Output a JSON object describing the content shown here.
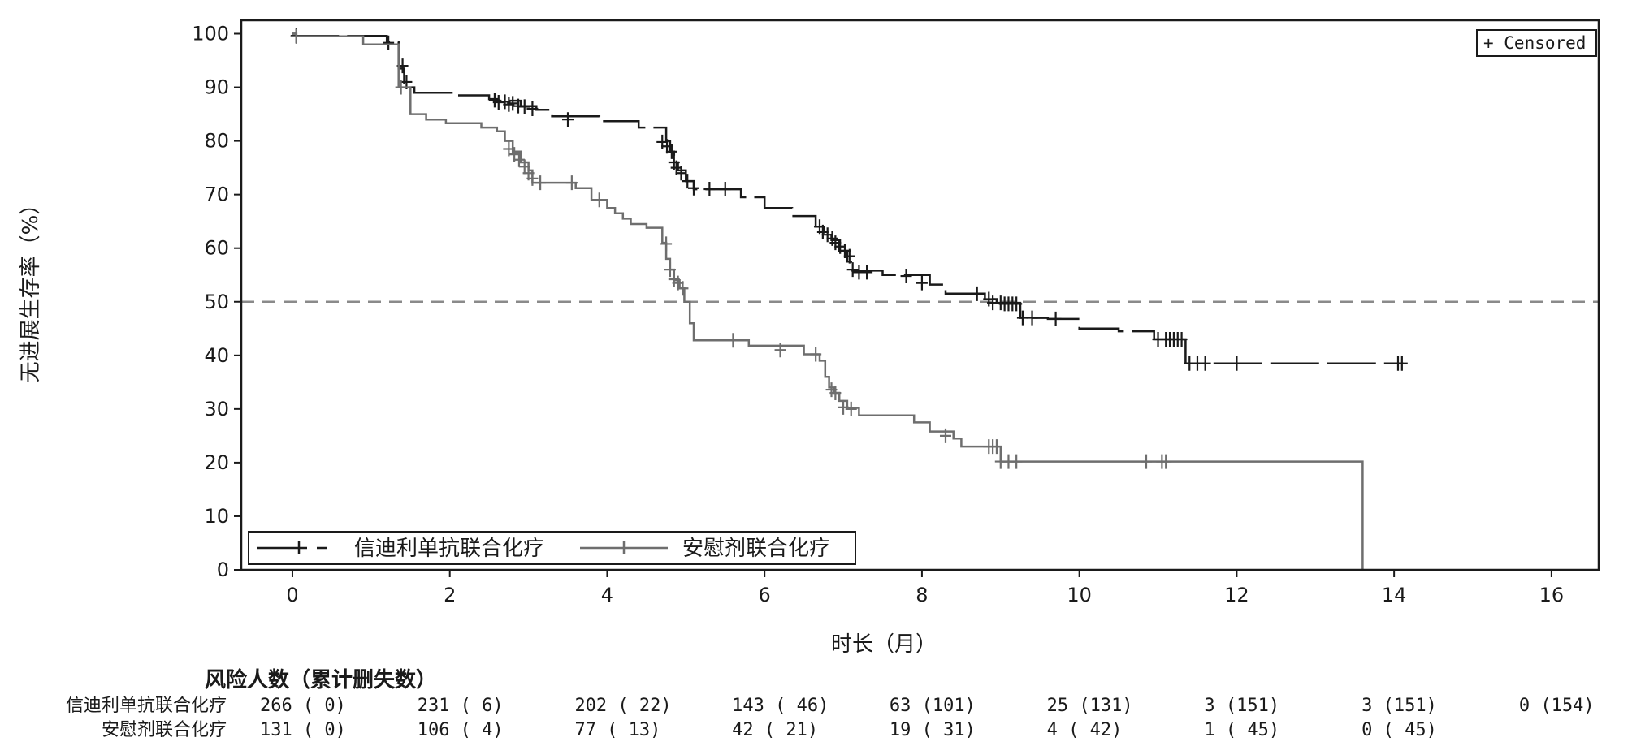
{
  "chart_data": {
    "type": "line",
    "ylabel": "无进展生存率（%）",
    "xlabel": "时长（月）",
    "xlim": [
      -0.65,
      16.6
    ],
    "ylim": [
      0,
      102.5
    ],
    "x_ticks": [
      0,
      2,
      4,
      6,
      8,
      10,
      12,
      14,
      16
    ],
    "y_ticks": [
      0,
      10,
      20,
      30,
      40,
      50,
      60,
      70,
      80,
      90,
      100
    ],
    "reference_line": {
      "y": 50,
      "style": "dashed"
    },
    "censor_legend": "+ Censored",
    "legend": [
      "信迪利单抗联合化疗",
      "安慰剂联合化疗"
    ],
    "series": [
      {
        "name": "信迪利单抗联合化疗",
        "color": "#1a1a1a",
        "steps": [
          [
            0,
            100
          ],
          [
            0.05,
            99.6
          ],
          [
            1.2,
            98.5
          ],
          [
            1.35,
            93.5
          ],
          [
            1.42,
            90
          ],
          [
            1.55,
            89
          ],
          [
            2.1,
            88.5
          ],
          [
            2.5,
            87.8
          ],
          [
            2.6,
            87.5
          ],
          [
            2.9,
            86.5
          ],
          [
            3.1,
            85.8
          ],
          [
            3.3,
            84.6
          ],
          [
            3.9,
            83.7
          ],
          [
            4.4,
            82.5
          ],
          [
            4.75,
            80
          ],
          [
            4.8,
            78
          ],
          [
            4.85,
            76
          ],
          [
            4.9,
            74.5
          ],
          [
            5.0,
            72.5
          ],
          [
            5.1,
            71
          ],
          [
            5.7,
            69.5
          ],
          [
            6.0,
            67.5
          ],
          [
            6.35,
            66
          ],
          [
            6.65,
            64
          ],
          [
            6.75,
            62.5
          ],
          [
            6.85,
            61.5
          ],
          [
            6.95,
            59.5
          ],
          [
            7.05,
            57.5
          ],
          [
            7.1,
            55.8
          ],
          [
            7.5,
            55
          ],
          [
            8.1,
            53.2
          ],
          [
            8.3,
            51.5
          ],
          [
            8.8,
            50.5
          ],
          [
            8.95,
            49.8
          ],
          [
            9.25,
            47
          ],
          [
            9.6,
            46.8
          ],
          [
            10.0,
            45
          ],
          [
            10.5,
            44.5
          ],
          [
            10.95,
            43
          ],
          [
            11.35,
            38.5
          ],
          [
            14.1,
            38.5
          ]
        ],
        "censors": [
          [
            0.05,
            99.6
          ],
          [
            1.22,
            98.3
          ],
          [
            1.4,
            94
          ],
          [
            1.45,
            91
          ],
          [
            2.57,
            87.6
          ],
          [
            2.62,
            87.2
          ],
          [
            2.7,
            87.3
          ],
          [
            2.75,
            86.8
          ],
          [
            2.8,
            87
          ],
          [
            2.87,
            86.5
          ],
          [
            2.95,
            86.4
          ],
          [
            3.05,
            86
          ],
          [
            3.5,
            84
          ],
          [
            4.7,
            79.8
          ],
          [
            4.76,
            79
          ],
          [
            4.82,
            78
          ],
          [
            4.85,
            76
          ],
          [
            4.88,
            75
          ],
          [
            4.94,
            74
          ],
          [
            5.02,
            72.5
          ],
          [
            5.1,
            71.2
          ],
          [
            5.3,
            71
          ],
          [
            5.5,
            71
          ],
          [
            6.7,
            64
          ],
          [
            6.74,
            63
          ],
          [
            6.8,
            62.5
          ],
          [
            6.86,
            61.8
          ],
          [
            6.9,
            61
          ],
          [
            6.96,
            60.3
          ],
          [
            7.02,
            59.5
          ],
          [
            7.08,
            58.5
          ],
          [
            7.12,
            56
          ],
          [
            7.2,
            55.5
          ],
          [
            7.3,
            55.5
          ],
          [
            7.8,
            54.8
          ],
          [
            8.0,
            53.5
          ],
          [
            8.7,
            51.5
          ],
          [
            8.85,
            50.5
          ],
          [
            8.9,
            49.8
          ],
          [
            9.0,
            49.8
          ],
          [
            9.05,
            49.6
          ],
          [
            9.1,
            49.6
          ],
          [
            9.15,
            49.6
          ],
          [
            9.2,
            49.6
          ],
          [
            9.28,
            47
          ],
          [
            9.4,
            47
          ],
          [
            9.7,
            46.8
          ],
          [
            11.0,
            43
          ],
          [
            11.1,
            43
          ],
          [
            11.15,
            43
          ],
          [
            11.2,
            43
          ],
          [
            11.25,
            43
          ],
          [
            11.3,
            43
          ],
          [
            11.4,
            38.5
          ],
          [
            11.5,
            38.5
          ],
          [
            11.6,
            38.5
          ],
          [
            12.0,
            38.5
          ],
          [
            14.05,
            38.5
          ],
          [
            14.1,
            38.5
          ]
        ]
      },
      {
        "name": "安慰剂联合化疗",
        "color": "#6e6e6e",
        "steps": [
          [
            0,
            100
          ],
          [
            0.05,
            99.5
          ],
          [
            0.9,
            98
          ],
          [
            1.35,
            90
          ],
          [
            1.5,
            85
          ],
          [
            1.7,
            84
          ],
          [
            1.95,
            83.3
          ],
          [
            2.4,
            82.5
          ],
          [
            2.6,
            81.8
          ],
          [
            2.7,
            80
          ],
          [
            2.8,
            78
          ],
          [
            2.9,
            76
          ],
          [
            3.0,
            74.5
          ],
          [
            3.05,
            72.2
          ],
          [
            3.6,
            71.2
          ],
          [
            3.8,
            69
          ],
          [
            4.0,
            67.5
          ],
          [
            4.1,
            66.5
          ],
          [
            4.2,
            65.5
          ],
          [
            4.3,
            64.5
          ],
          [
            4.5,
            63.8
          ],
          [
            4.7,
            61
          ],
          [
            4.75,
            58
          ],
          [
            4.8,
            56
          ],
          [
            4.85,
            54
          ],
          [
            4.92,
            52.5
          ],
          [
            4.98,
            50
          ],
          [
            5.05,
            46
          ],
          [
            5.1,
            42.8
          ],
          [
            5.8,
            41.8
          ],
          [
            6.5,
            40.2
          ],
          [
            6.7,
            39
          ],
          [
            6.77,
            36
          ],
          [
            6.82,
            34
          ],
          [
            6.88,
            33
          ],
          [
            6.95,
            31.5
          ],
          [
            7.05,
            30.2
          ],
          [
            7.2,
            28.8
          ],
          [
            7.9,
            27.5
          ],
          [
            8.1,
            25.8
          ],
          [
            8.4,
            24.5
          ],
          [
            8.5,
            23
          ],
          [
            9.0,
            20.2
          ],
          [
            13.6,
            20.2
          ],
          [
            13.6,
            0
          ]
        ],
        "censors": [
          [
            0.05,
            99.5
          ],
          [
            1.38,
            90
          ],
          [
            2.75,
            78.5
          ],
          [
            2.82,
            77.5
          ],
          [
            2.88,
            76.5
          ],
          [
            2.95,
            75.2
          ],
          [
            3.0,
            74
          ],
          [
            3.05,
            73
          ],
          [
            3.15,
            72.2
          ],
          [
            3.55,
            72.2
          ],
          [
            3.9,
            69
          ],
          [
            4.75,
            60.8
          ],
          [
            4.8,
            56
          ],
          [
            4.85,
            54.2
          ],
          [
            4.9,
            53.5
          ],
          [
            4.96,
            52.5
          ],
          [
            5.6,
            42.8
          ],
          [
            6.2,
            41
          ],
          [
            6.65,
            40.2
          ],
          [
            6.85,
            33.6
          ],
          [
            6.9,
            33
          ],
          [
            7.0,
            30.3
          ],
          [
            7.1,
            30
          ],
          [
            8.3,
            25
          ],
          [
            8.85,
            23
          ],
          [
            8.9,
            23
          ],
          [
            8.95,
            23
          ],
          [
            9.0,
            20.2
          ],
          [
            9.1,
            20.2
          ],
          [
            9.2,
            20.2
          ],
          [
            10.85,
            20.2
          ],
          [
            11.05,
            20.2
          ],
          [
            11.1,
            20.2
          ]
        ]
      }
    ],
    "risk_table": {
      "title": "风险人数（累计删失数）",
      "rows": [
        {
          "label": "信迪利单抗联合化疗",
          "cells": [
            "266 (   0)",
            "231 (   6)",
            "202 (  22)",
            "143 (  46)",
            "63 (101)",
            "25 (131)",
            "3 (151)",
            "3 (151)",
            "0 (154)"
          ]
        },
        {
          "label": "安慰剂联合化疗",
          "cells": [
            "131 (   0)",
            "106 (   4)",
            "77 (  13)",
            "42 (  21)",
            "19 (  31)",
            "4 (  42)",
            "1 (  45)",
            "0 (  45)",
            ""
          ]
        }
      ]
    }
  }
}
